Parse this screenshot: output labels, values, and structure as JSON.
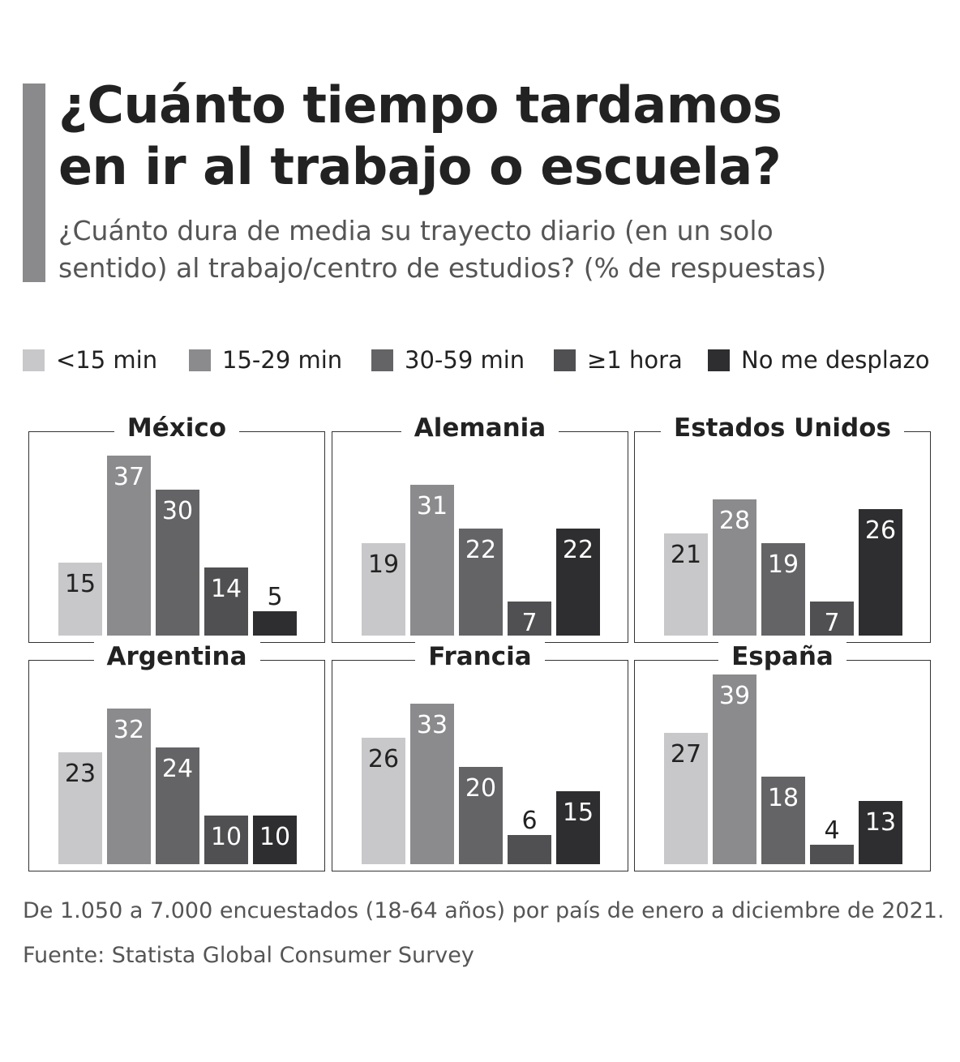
{
  "title_line1": "¿Cuánto tiempo tardamos",
  "title_line2": "en ir al trabajo o escuela?",
  "subtitle_line1": "¿Cuánto dura de media su trayecto diario (en un solo",
  "subtitle_line2": "sentido) al trabajo/centro de estudios? (% de respuestas)",
  "note": "De 1.050 a 7.000 encuestados (18-64 años) por país de enero a diciembre de 2021.",
  "source": "Fuente: Statista Global Consumer Survey",
  "legend": [
    {
      "label": "<15 min",
      "color": "#c8c8ca"
    },
    {
      "label": "15-29 min",
      "color": "#8b8b8e"
    },
    {
      "label": "30-59 min",
      "color": "#646467"
    },
    {
      "label": "≥1 hora",
      "color": "#505052"
    },
    {
      "label": "No me desplazo",
      "color": "#2e2e30"
    }
  ],
  "chart_data": {
    "type": "bar",
    "categories": [
      "<15 min",
      "15-29 min",
      "30-59 min",
      "≥1 hora",
      "No me desplazo"
    ],
    "ylim": [
      0,
      40
    ],
    "panels": [
      {
        "country": "México",
        "values": [
          15,
          37,
          30,
          14,
          5
        ]
      },
      {
        "country": "Alemania",
        "values": [
          19,
          31,
          22,
          7,
          22
        ]
      },
      {
        "country": "Estados Unidos",
        "values": [
          21,
          28,
          19,
          7,
          26
        ]
      },
      {
        "country": "Argentina",
        "values": [
          23,
          32,
          24,
          10,
          10
        ]
      },
      {
        "country": "Francia",
        "values": [
          26,
          33,
          20,
          6,
          15
        ]
      },
      {
        "country": "España",
        "values": [
          27,
          39,
          18,
          4,
          13
        ]
      }
    ]
  }
}
